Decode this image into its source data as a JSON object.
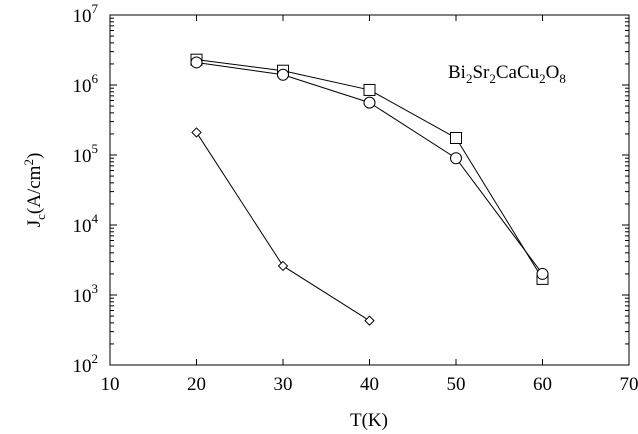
{
  "chart_data": {
    "type": "line",
    "annotation": "Bi2Sr2CaCu2O8",
    "xlabel": "T(K)",
    "ylabel": "Jc(A/cm2)",
    "xlim": [
      10,
      70
    ],
    "ylim": [
      100,
      10000000
    ],
    "y_scale": "log",
    "grid": false,
    "x_ticks": [
      10,
      20,
      30,
      40,
      50,
      60,
      70
    ],
    "y_ticks": [
      100,
      1000,
      10000,
      100000,
      1000000,
      10000000
    ],
    "x_tick_labels": [
      "10",
      "20",
      "30",
      "40",
      "50",
      "60",
      "70"
    ],
    "y_tick_labels": [
      {
        "base": "10",
        "exp": "2"
      },
      {
        "base": "10",
        "exp": "3"
      },
      {
        "base": "10",
        "exp": "4"
      },
      {
        "base": "10",
        "exp": "5"
      },
      {
        "base": "10",
        "exp": "6"
      },
      {
        "base": "10",
        "exp": "7"
      }
    ],
    "series": [
      {
        "marker": "square",
        "x": [
          20,
          30,
          40,
          50,
          60
        ],
        "y": [
          2300000,
          1600000,
          850000,
          175000,
          1700
        ]
      },
      {
        "marker": "circle",
        "x": [
          20,
          30,
          40,
          50,
          60
        ],
        "y": [
          2100000,
          1400000,
          560000,
          90000,
          2000
        ]
      },
      {
        "marker": "diamond",
        "x": [
          20,
          30,
          40
        ],
        "y": [
          210000,
          2600,
          430
        ]
      }
    ]
  }
}
